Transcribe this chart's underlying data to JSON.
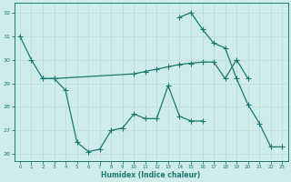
{
  "xlabel": "Humidex (Indice chaleur)",
  "bg_color": "#ceecea",
  "line_color": "#1a7a6e",
  "grid_color": "#b8dbd8",
  "xlim": [
    -0.5,
    23.5
  ],
  "ylim": [
    25.7,
    32.4
  ],
  "yticks": [
    26,
    27,
    28,
    29,
    30,
    31,
    32
  ],
  "xticks": [
    0,
    1,
    2,
    3,
    4,
    5,
    6,
    7,
    8,
    9,
    10,
    11,
    12,
    13,
    14,
    15,
    16,
    17,
    18,
    19,
    20,
    21,
    22,
    23
  ],
  "line1_x": [
    0,
    1,
    2,
    3,
    4,
    5,
    6,
    7,
    8,
    9,
    10,
    11,
    12,
    13,
    14,
    15,
    16
  ],
  "line1_y": [
    31.0,
    30.0,
    29.2,
    29.2,
    28.7,
    26.5,
    26.1,
    26.2,
    27.0,
    27.1,
    27.7,
    27.5,
    27.5,
    28.9,
    27.6,
    27.4,
    27.4
  ],
  "line2_x": [
    2,
    3,
    10,
    11,
    12,
    13,
    14,
    15,
    16,
    17,
    18,
    19,
    20
  ],
  "line2_y": [
    29.2,
    29.2,
    29.4,
    29.5,
    29.6,
    29.7,
    29.8,
    29.85,
    29.9,
    29.9,
    29.2,
    30.0,
    29.2
  ],
  "line3_x": [
    14,
    15,
    16,
    17,
    18,
    19,
    20,
    21,
    22,
    23
  ],
  "line3_y": [
    31.8,
    32.0,
    31.3,
    30.7,
    30.5,
    29.2,
    28.1,
    27.3,
    26.3,
    26.3
  ]
}
